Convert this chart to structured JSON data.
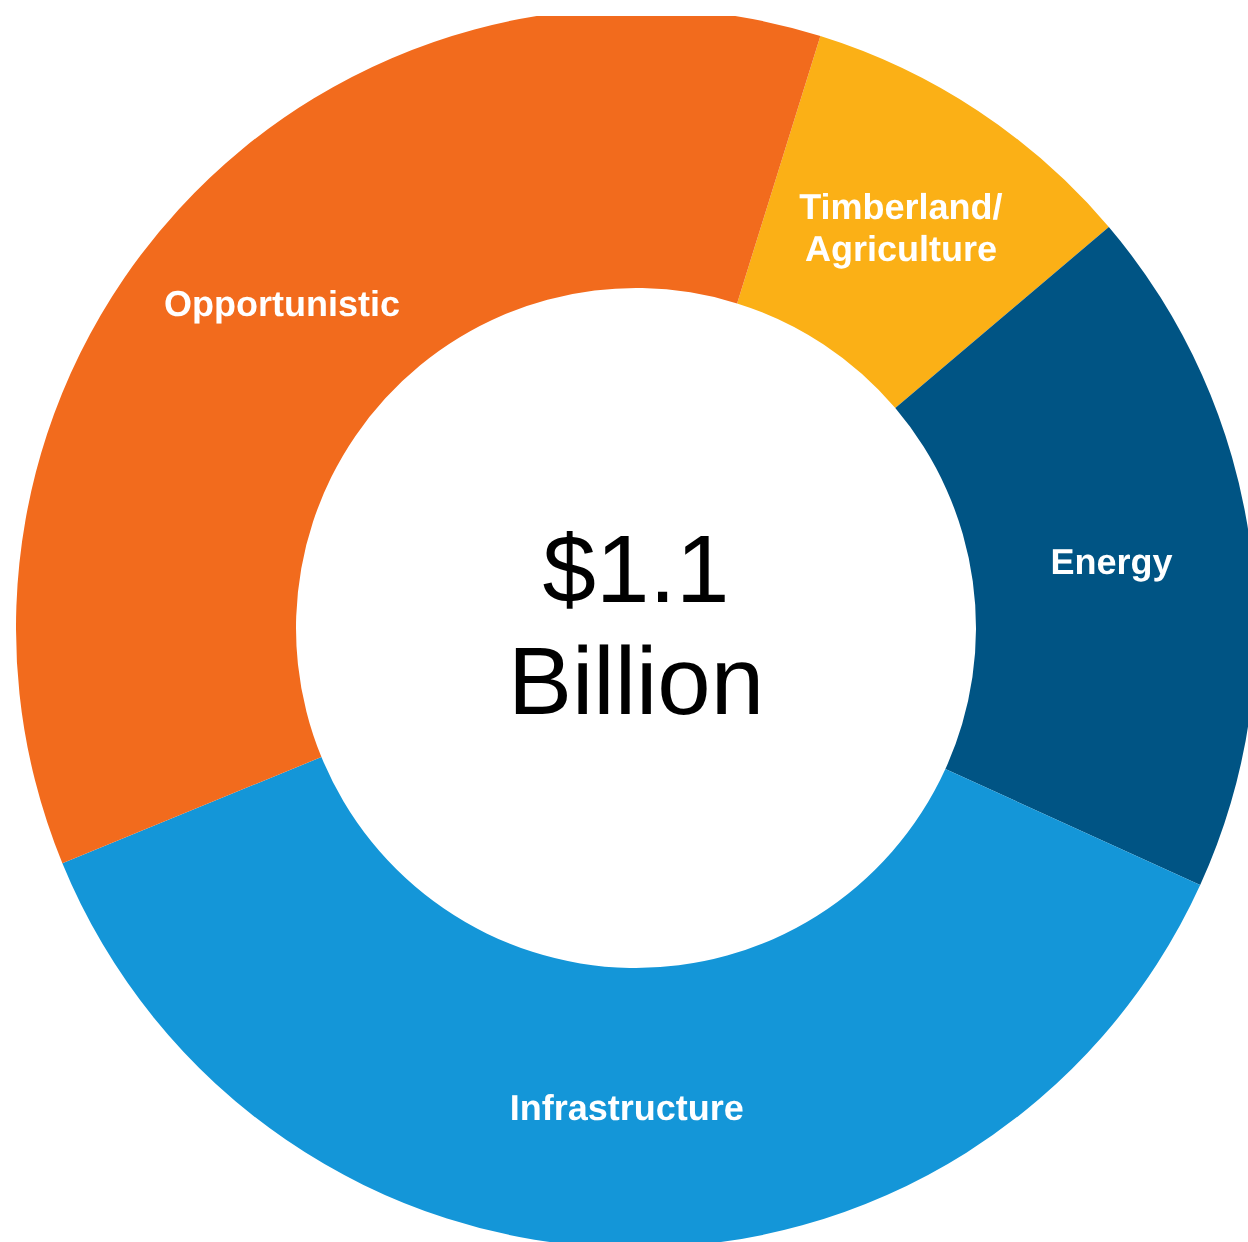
{
  "chart_data": {
    "type": "donut",
    "categories": [
      "Timberland/Agriculture",
      "Energy",
      "Infrastructure",
      "Opportunistic"
    ],
    "values": [
      9,
      18,
      37,
      36
    ],
    "colors": [
      "#fbb016",
      "#005484",
      "#1496d8",
      "#f26b1d"
    ],
    "annotations": [
      "$1.1 Billion"
    ]
  }
}
